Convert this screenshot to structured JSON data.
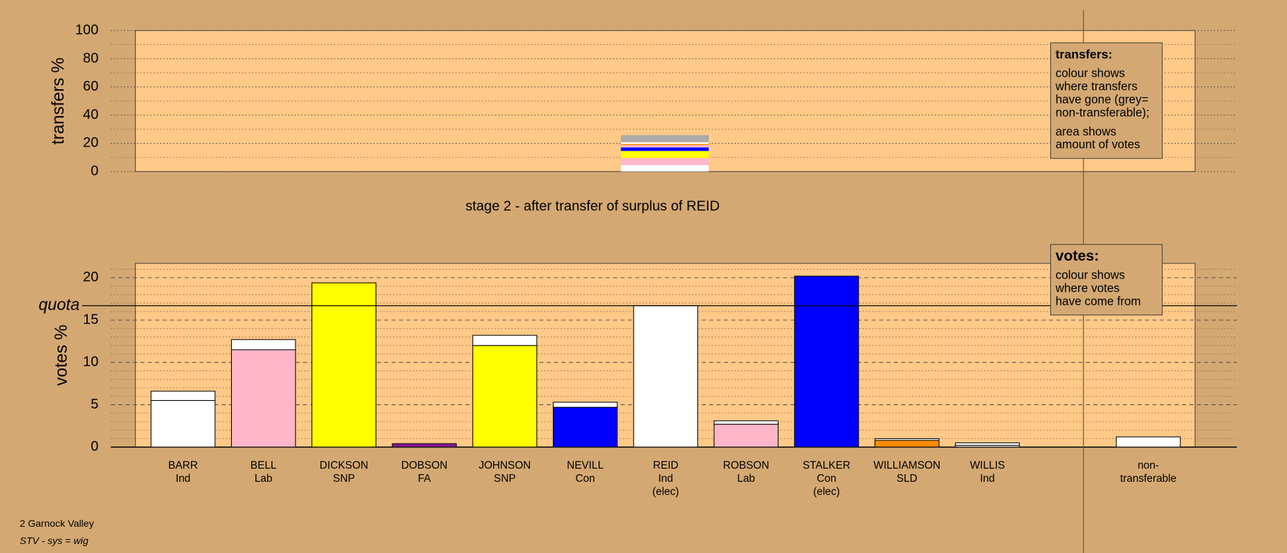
{
  "chart_data": [
    {
      "type": "stacked-bar",
      "y_label": "transfers %",
      "ylim": [
        0,
        100
      ],
      "yticks": [
        0,
        20,
        40,
        60,
        80,
        100
      ],
      "minor_yticks": [
        10,
        30,
        50,
        70,
        90
      ],
      "grid": "dotted",
      "segments": [
        {
          "color": "#ffffff",
          "value": 4.6
        },
        {
          "color": "#ffb6c8",
          "value": 5.0
        },
        {
          "color": "#ffff00",
          "value": 5.0
        },
        {
          "color": "#0000ff",
          "value": 2.5
        },
        {
          "color": "#ffb6c8",
          "value": 1.7
        },
        {
          "color": "#ff8c00",
          "value": 0.8
        },
        {
          "color": "#ffffff",
          "value": 1.2
        },
        {
          "color": "#aaaaaa",
          "value": 5.0
        }
      ],
      "note": {
        "title": "transfers:",
        "paragraphs": [
          [
            "colour shows",
            "where transfers",
            "have gone (grey=",
            "non-transferable);"
          ],
          [
            "area shows",
            "amount of votes"
          ]
        ]
      }
    },
    {
      "type": "stacked-bar",
      "title": "stage 2 - after transfer of surplus of REID",
      "y_label": "votes %",
      "ylim": [
        0,
        21.7
      ],
      "yticks": [
        0,
        5,
        10,
        15,
        20
      ],
      "minor_yticks": [
        1,
        2,
        3,
        4,
        6,
        7,
        8,
        9,
        11,
        12,
        13,
        14,
        16,
        17,
        18,
        19,
        21
      ],
      "grid": "dashed",
      "quota": {
        "label": "quota",
        "value": 16.7
      },
      "categories": [
        [
          "BARR",
          "Ind"
        ],
        [
          "BELL",
          "Lab"
        ],
        [
          "DICKSON",
          "SNP"
        ],
        [
          "DOBSON",
          "FA"
        ],
        [
          "JOHNSON",
          "SNP"
        ],
        [
          "NEVILL",
          "Con"
        ],
        [
          "REID",
          "Ind",
          "(elec)"
        ],
        [
          "ROBSON",
          "Lab"
        ],
        [
          "STALKER",
          "Con",
          "(elec)"
        ],
        [
          "WILLIAMSON",
          "SLD"
        ],
        [
          "WILLIS",
          "Ind"
        ],
        [
          "non-",
          "transferable"
        ]
      ],
      "series": [
        {
          "colors": [
            "#ffffff",
            "#ffb6c8",
            "#ffff00",
            "#8b1a9b",
            "#ffff00",
            "#0000ff",
            "#ffffff",
            "#ffb6c8",
            "#0000ff",
            "#ff8c00",
            "#ffffff",
            "#ffffff"
          ],
          "values": [
            5.5,
            11.5,
            19.4,
            0.4,
            12.0,
            4.7,
            16.7,
            2.7,
            20.2,
            0.8,
            0.2,
            null
          ]
        },
        {
          "color": "#ffffff",
          "values": [
            1.1,
            1.2,
            null,
            null,
            1.2,
            0.6,
            null,
            0.4,
            null,
            0.2,
            0.3,
            1.2
          ]
        }
      ],
      "note": {
        "title": "votes:",
        "paragraphs": [
          [
            "colour shows",
            "where votes",
            "have come from"
          ]
        ]
      }
    }
  ],
  "footer": [
    "2 Garnock Valley",
    "STV - sys = wig"
  ]
}
